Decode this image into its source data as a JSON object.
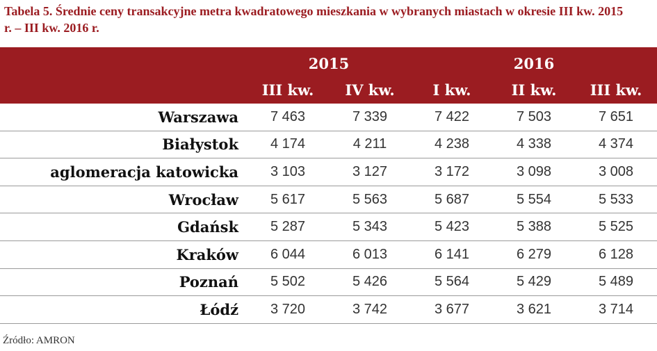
{
  "title": "Tabela 5. Średnie ceny transakcyjne metra kwadratowego mieszkania w wybranych miastach w okresie III kw. 2015 r. – III kw. 2016 r.",
  "table": {
    "years": [
      "2015",
      "2016"
    ],
    "quarters": [
      "III kw.",
      "IV kw.",
      "I kw.",
      "II kw.",
      "III kw."
    ],
    "rows": [
      {
        "city": "Warszawa",
        "values": [
          "7 463",
          "7 339",
          "7 422",
          "7 503",
          "7 651"
        ]
      },
      {
        "city": "Białystok",
        "values": [
          "4 174",
          "4 211",
          "4 238",
          "4 338",
          "4 374"
        ]
      },
      {
        "city": "aglomeracja katowicka",
        "values": [
          "3 103",
          "3 127",
          "3 172",
          "3 098",
          "3 008"
        ]
      },
      {
        "city": "Wrocław",
        "values": [
          "5 617",
          "5 563",
          "5 687",
          "5 554",
          "5 533"
        ]
      },
      {
        "city": "Gdańsk",
        "values": [
          "5 287",
          "5 343",
          "5 423",
          "5 388",
          "5 525"
        ]
      },
      {
        "city": "Kraków",
        "values": [
          "6 044",
          "6 013",
          "6 141",
          "6 279",
          "6 128"
        ]
      },
      {
        "city": "Poznań",
        "values": [
          "5 502",
          "5 426",
          "5 564",
          "5 429",
          "5 489"
        ]
      },
      {
        "city": "Łódź",
        "values": [
          "3 720",
          "3 742",
          "3 677",
          "3 621",
          "3 714"
        ]
      }
    ]
  },
  "source": "Źródło: AMRON"
}
